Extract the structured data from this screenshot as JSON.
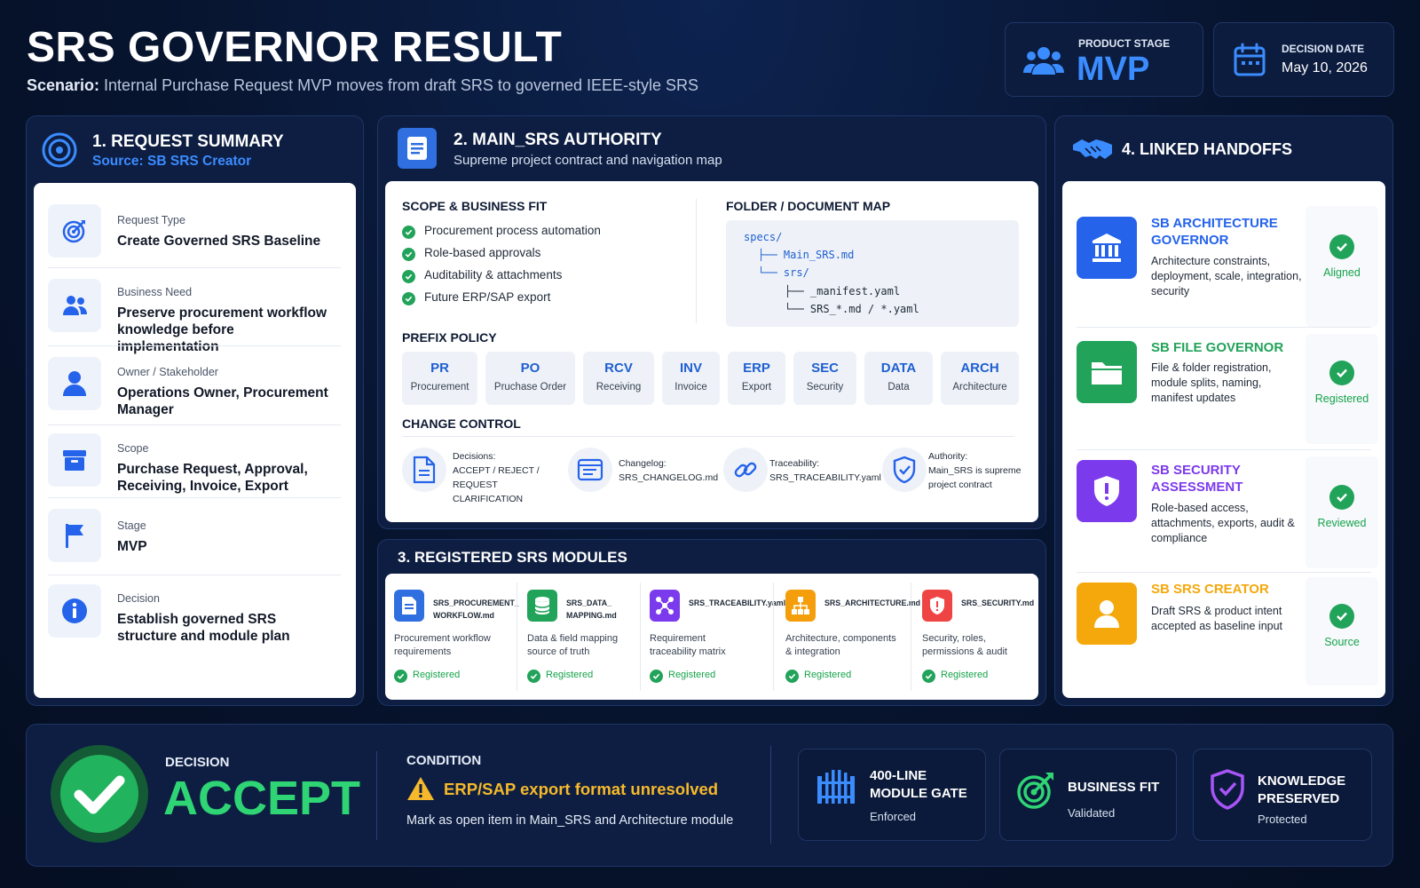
{
  "header": {
    "title": "SRS GOVERNOR RESULT",
    "scenario_label": "Scenario:",
    "scenario_text": "Internal Purchase Request MVP moves from draft SRS to governed IEEE-style SRS",
    "product_stage_label": "PRODUCT STAGE",
    "product_stage_value": "MVP",
    "decision_date_label": "DECISION DATE",
    "decision_date_value": "May 10, 2026"
  },
  "request_summary": {
    "title": "1. REQUEST SUMMARY",
    "subtitle": "Source: SB SRS Creator",
    "rows": [
      {
        "label": "Request Type",
        "value": "Create Governed SRS Baseline",
        "icon": "target-icon"
      },
      {
        "label": "Business Need",
        "value": "Preserve procurement workflow knowledge before implementation",
        "icon": "users-icon"
      },
      {
        "label": "Owner / Stakeholder",
        "value": "Operations Owner, Procurement Manager",
        "icon": "user-icon"
      },
      {
        "label": "Scope",
        "value": "Purchase Request, Approval, Receiving, Invoice, Export",
        "icon": "archive-icon"
      },
      {
        "label": "Stage",
        "value": "MVP",
        "icon": "flag-icon"
      },
      {
        "label": "Decision",
        "value": "Establish governed SRS structure and module plan",
        "icon": "info-icon"
      }
    ]
  },
  "main_srs": {
    "title": "2. MAIN_SRS AUTHORITY",
    "subtitle": "Supreme project contract and navigation map",
    "scope_heading": "SCOPE & BUSINESS FIT",
    "scope_items": [
      "Procurement process automation",
      "Role-based approvals",
      "Auditability & attachments",
      "Future ERP/SAP export"
    ],
    "folder_heading": "FOLDER / DOCUMENT MAP",
    "folder_lines": [
      "specs/",
      "├── Main_SRS.md",
      "└── srs/",
      "├── _manifest.yaml",
      "└── SRS_*.md / *.yaml"
    ],
    "prefix_heading": "PREFIX POLICY",
    "prefixes": [
      {
        "code": "PR",
        "name": "Procurement"
      },
      {
        "code": "PO",
        "name": "Pruchase Order"
      },
      {
        "code": "RCV",
        "name": "Receiving"
      },
      {
        "code": "INV",
        "name": "Invoice"
      },
      {
        "code": "ERP",
        "name": "Export"
      },
      {
        "code": "SEC",
        "name": "Security"
      },
      {
        "code": "DATA",
        "name": "Data"
      },
      {
        "code": "ARCH",
        "name": "Architecture"
      }
    ],
    "change_heading": "CHANGE CONTROL",
    "change_items": [
      {
        "line1": "Decisions:",
        "line2": "ACCEPT / REJECT /",
        "line3": "REQUEST CLARIFICATION",
        "icon": "document-icon"
      },
      {
        "line1": "Changelog:",
        "line2": "SRS_CHANGELOG.md",
        "line3": "",
        "icon": "changelog-icon"
      },
      {
        "line1": "Traceability:",
        "line2": "SRS_TRACEABILITY.yaml",
        "line3": "",
        "icon": "link-icon"
      },
      {
        "line1": "Authority:",
        "line2": "Main_SRS is supreme",
        "line3": "project contract",
        "icon": "shield-check-icon"
      }
    ]
  },
  "modules": {
    "title": "3. REGISTERED SRS MODULES",
    "items": [
      {
        "file_line1": "SRS_PROCUREMENT_",
        "file_line2": "WORKFLOW.md",
        "desc_line1": "Procurement workflow",
        "desc_line2": "requirements",
        "status": "Registered",
        "color": "#2f6fe0",
        "icon": "document-icon"
      },
      {
        "file_line1": "SRS_DATA_",
        "file_line2": "MAPPING.md",
        "desc_line1": "Data & field mapping",
        "desc_line2": "source of truth",
        "status": "Registered",
        "color": "#22a35a",
        "icon": "database-icon"
      },
      {
        "file_line1": "SRS_TRACEABILITY.yaml",
        "file_line2": "",
        "desc_line1": "Requirement",
        "desc_line2": "traceability matrix",
        "status": "Registered",
        "color": "#7c3aed",
        "icon": "network-icon"
      },
      {
        "file_line1": "SRS_ARCHITECTURE.md",
        "file_line2": "",
        "desc_line1": "Architecture, components",
        "desc_line2": "& integration",
        "status": "Registered",
        "color": "#f59e0b",
        "icon": "hierarchy-icon"
      },
      {
        "file_line1": "SRS_SECURITY.md",
        "file_line2": "",
        "desc_line1": "Security, roles,",
        "desc_line2": "permissions & audit",
        "status": "Registered",
        "color": "#ef4444",
        "icon": "shield-icon"
      }
    ]
  },
  "handoffs": {
    "title": "4. LINKED HANDOFFS",
    "items": [
      {
        "title": "SB ARCHITECTURE GOVERNOR",
        "desc": "Architecture constraints, deployment, scale, integration, security",
        "status": "Aligned",
        "color": "#2563eb",
        "icon": "bank-icon"
      },
      {
        "title": "SB FILE GOVERNOR",
        "desc": "File & folder registration, module splits, naming, manifest updates",
        "status": "Registered",
        "color": "#22a35a",
        "icon": "folder-icon"
      },
      {
        "title": "SB SECURITY ASSESSMENT",
        "desc": "Role-based access, attachments, exports, audit & compliance",
        "status": "Reviewed",
        "color": "#7c3aed",
        "icon": "shield-icon"
      },
      {
        "title": "SB SRS CREATOR",
        "desc": "Draft SRS & product intent accepted as baseline input",
        "status": "Source",
        "color": "#f5a80b",
        "icon": "user-icon"
      }
    ]
  },
  "decision": {
    "label": "DECISION",
    "value": "ACCEPT",
    "condition_label": "CONDITION",
    "condition_title": "ERP/SAP export format unresolved",
    "condition_note": "Mark as open item in Main_SRS and Architecture module",
    "gates": [
      {
        "title_line1": "400-LINE",
        "title_line2": "MODULE GATE",
        "status": "Enforced",
        "icon": "gate-icon"
      },
      {
        "title_line1": "BUSINESS FIT",
        "title_line2": "",
        "status": "Validated",
        "icon": "target-icon"
      },
      {
        "title_line1": "KNOWLEDGE",
        "title_line2": "PRESERVED",
        "status": "Protected",
        "icon": "shield-check-icon"
      }
    ]
  },
  "colors": {
    "background": "#07142e",
    "accent_blue": "#3b8cff",
    "accept_green": "#2fd574",
    "warning_yellow": "#f6b92b"
  }
}
